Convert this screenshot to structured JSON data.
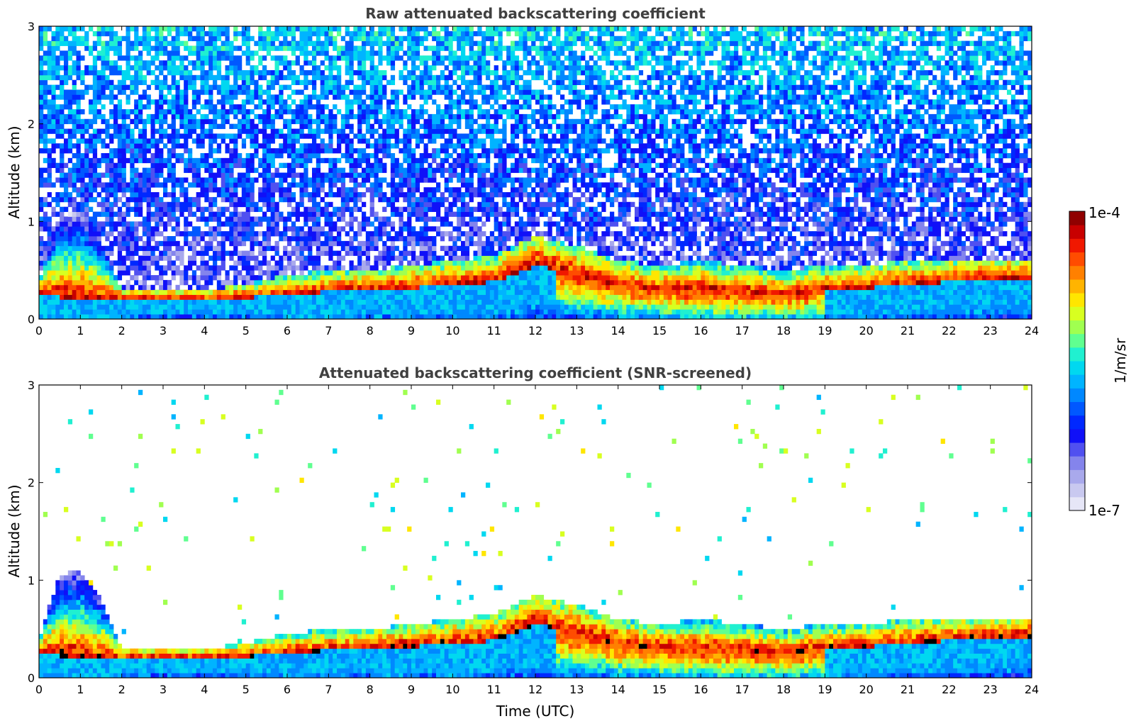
{
  "panels": [
    {
      "title": "Raw attenuated backscattering coefficient",
      "ylabel": "Altitude (km)",
      "xlabel": "",
      "screened": false
    },
    {
      "title": "Attenuated backscattering coefficient (SNR-screened)",
      "ylabel": "Altitude (km)",
      "xlabel": "Time (UTC)",
      "screened": true
    }
  ],
  "colorbar": {
    "label": "1/m/sr",
    "max_label": "1e-4",
    "min_label": "1e-7",
    "colors": [
      "#e6e6f7",
      "#c9c9f0",
      "#a9a9ec",
      "#8484ec",
      "#5050f0",
      "#1010f8",
      "#0028ff",
      "#0058ff",
      "#0088ff",
      "#00b4ff",
      "#00d8f0",
      "#20f0d0",
      "#60ff90",
      "#a0ff50",
      "#d8ff20",
      "#ffe600",
      "#ffb400",
      "#ff8000",
      "#ff4c00",
      "#f01800",
      "#c80000",
      "#900000"
    ]
  },
  "chart_data": [
    {
      "type": "heatmap",
      "title": "Raw attenuated backscattering coefficient",
      "xlabel": "",
      "ylabel": "Altitude (km)",
      "xlim": [
        0,
        24
      ],
      "ylim": [
        0,
        3
      ],
      "x_ticks": [
        "0",
        "1",
        "2",
        "3",
        "4",
        "5",
        "6",
        "7",
        "8",
        "9",
        "10",
        "11",
        "12",
        "13",
        "14",
        "15",
        "16",
        "17",
        "18",
        "19",
        "20",
        "21",
        "22",
        "23",
        "24"
      ],
      "y_ticks": [
        "0",
        "1",
        "2",
        "3"
      ],
      "color_scale": "log",
      "clim": [
        "1e-7",
        "1e-4"
      ],
      "boundary_layer_top_km": [
        [
          0,
          0.4
        ],
        [
          0.5,
          1.05
        ],
        [
          1,
          1.1
        ],
        [
          1.5,
          0.8
        ],
        [
          2,
          0.3
        ],
        [
          3,
          0.3
        ],
        [
          4,
          0.3
        ],
        [
          5,
          0.35
        ],
        [
          6,
          0.45
        ],
        [
          7,
          0.5
        ],
        [
          8,
          0.5
        ],
        [
          9,
          0.55
        ],
        [
          10,
          0.6
        ],
        [
          11,
          0.65
        ],
        [
          12,
          0.85
        ],
        [
          13,
          0.75
        ],
        [
          14,
          0.6
        ],
        [
          15,
          0.55
        ],
        [
          16,
          0.6
        ],
        [
          17,
          0.55
        ],
        [
          18,
          0.5
        ],
        [
          19,
          0.55
        ],
        [
          20,
          0.55
        ],
        [
          21,
          0.6
        ],
        [
          22,
          0.6
        ],
        [
          23,
          0.6
        ],
        [
          24,
          0.62
        ]
      ],
      "aerosol_layer_km": [
        [
          0,
          0.25
        ],
        [
          1,
          0.2
        ],
        [
          2,
          0.2
        ],
        [
          3,
          0.2
        ],
        [
          4,
          0.2
        ],
        [
          5,
          0.22
        ],
        [
          6,
          0.25
        ],
        [
          7,
          0.28
        ],
        [
          8,
          0.3
        ],
        [
          9,
          0.32
        ],
        [
          10,
          0.35
        ],
        [
          11,
          0.38
        ],
        [
          12,
          0.55
        ],
        [
          13,
          0.45
        ],
        [
          14,
          0.35
        ],
        [
          15,
          0.3
        ],
        [
          16,
          0.3
        ],
        [
          17,
          0.28
        ],
        [
          18,
          0.25
        ],
        [
          19,
          0.3
        ],
        [
          20,
          0.32
        ],
        [
          21,
          0.35
        ],
        [
          22,
          0.38
        ],
        [
          23,
          0.4
        ],
        [
          24,
          0.42
        ]
      ]
    },
    {
      "type": "heatmap",
      "title": "Attenuated backscattering coefficient (SNR-screened)",
      "xlabel": "Time (UTC)",
      "ylabel": "Altitude (km)",
      "xlim": [
        0,
        24
      ],
      "ylim": [
        0,
        3
      ],
      "x_ticks": [
        "0",
        "1",
        "2",
        "3",
        "4",
        "5",
        "6",
        "7",
        "8",
        "9",
        "10",
        "11",
        "12",
        "13",
        "14",
        "15",
        "16",
        "17",
        "18",
        "19",
        "20",
        "21",
        "22",
        "23",
        "24"
      ],
      "y_ticks": [
        "0",
        "1",
        "2",
        "3"
      ],
      "color_scale": "log",
      "clim": [
        "1e-7",
        "1e-4"
      ]
    }
  ]
}
